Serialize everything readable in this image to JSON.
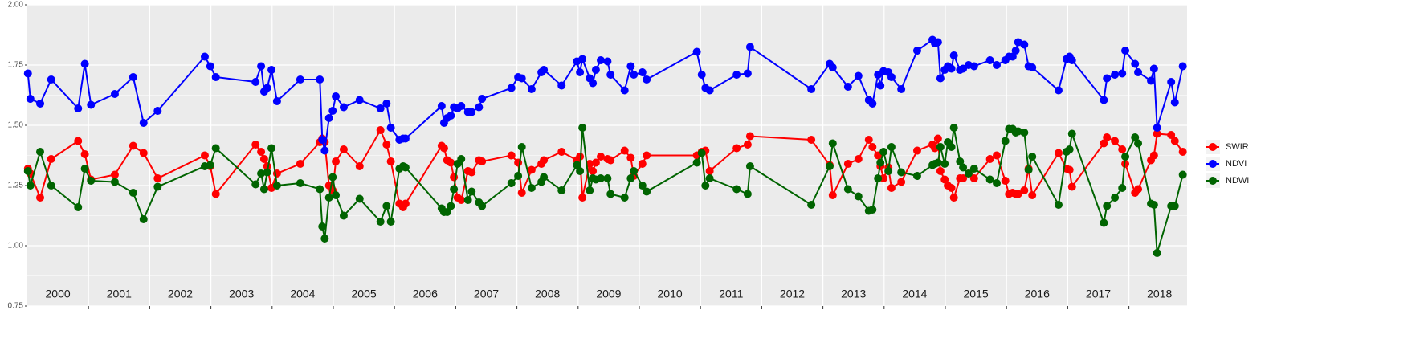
{
  "chart_data": {
    "type": "line",
    "x": [
      2000.01,
      2000.05,
      2000.21,
      2000.39,
      2000.83,
      2000.94,
      2001.04,
      2001.43,
      2001.73,
      2001.9,
      2002.13,
      2002.9,
      2002.99,
      2003.08,
      2003.73,
      2003.82,
      2003.87,
      2003.92,
      2003.99,
      2004.08,
      2004.46,
      2004.78,
      2004.82,
      2004.86,
      2004.93,
      2004.99,
      2005.04,
      2005.17,
      2005.43,
      2005.77,
      2005.87,
      2005.94,
      2006.08,
      2006.14,
      2006.18,
      2006.77,
      2006.81,
      2006.86,
      2006.92,
      2006.97,
      2007.03,
      2007.09,
      2007.2,
      2007.26,
      2007.38,
      2007.43,
      2007.91,
      2008.02,
      2008.08,
      2008.24,
      2008.4,
      2008.44,
      2008.73,
      2008.98,
      2009.03,
      2009.07,
      2009.19,
      2009.24,
      2009.29,
      2009.37,
      2009.48,
      2009.53,
      2009.76,
      2009.86,
      2009.91,
      2010.05,
      2010.12,
      2010.94,
      2011.02,
      2011.08,
      2011.15,
      2011.59,
      2011.77,
      2011.81,
      2012.81,
      2013.11,
      2013.16,
      2013.41,
      2013.58,
      2013.75,
      2013.81,
      2013.9,
      2013.94,
      2013.99,
      2014.07,
      2014.12,
      2014.28,
      2014.54,
      2014.79,
      2014.83,
      2014.88,
      2014.92,
      2014.99,
      2015.04,
      2015.1,
      2015.14,
      2015.24,
      2015.29,
      2015.38,
      2015.47,
      2015.73,
      2015.84,
      2015.98,
      2016.04,
      2016.1,
      2016.15,
      2016.19,
      2016.29,
      2016.36,
      2016.42,
      2016.85,
      2016.98,
      2017.03,
      2017.07,
      2017.59,
      2017.64,
      2017.77,
      2017.89,
      2017.94,
      2018.1,
      2018.15,
      2018.36,
      2018.41,
      2018.46,
      2018.69,
      2018.75,
      2018.88
    ],
    "series": [
      {
        "name": "SWIR",
        "color": "#ff0000",
        "values": [
          1.32,
          1.3,
          1.2,
          1.36,
          1.435,
          1.38,
          1.275,
          1.295,
          1.415,
          1.385,
          1.28,
          1.375,
          1.33,
          1.215,
          1.42,
          1.39,
          1.36,
          1.33,
          1.24,
          1.3,
          1.34,
          1.43,
          1.445,
          1.43,
          1.25,
          1.23,
          1.35,
          1.4,
          1.33,
          1.48,
          1.42,
          1.35,
          1.175,
          1.16,
          1.175,
          1.415,
          1.405,
          1.355,
          1.345,
          1.285,
          1.2,
          1.19,
          1.31,
          1.305,
          1.355,
          1.35,
          1.375,
          1.345,
          1.22,
          1.315,
          1.34,
          1.355,
          1.39,
          1.355,
          1.37,
          1.2,
          1.34,
          1.31,
          1.345,
          1.37,
          1.36,
          1.355,
          1.395,
          1.365,
          1.29,
          1.34,
          1.375,
          1.375,
          1.39,
          1.395,
          1.31,
          1.405,
          1.42,
          1.455,
          1.44,
          1.335,
          1.21,
          1.34,
          1.36,
          1.44,
          1.41,
          1.375,
          1.33,
          1.28,
          1.325,
          1.24,
          1.265,
          1.395,
          1.42,
          1.405,
          1.445,
          1.31,
          1.275,
          1.25,
          1.24,
          1.2,
          1.28,
          1.28,
          1.3,
          1.28,
          1.36,
          1.375,
          1.27,
          1.215,
          1.22,
          1.215,
          1.215,
          1.23,
          1.32,
          1.21,
          1.385,
          1.32,
          1.315,
          1.245,
          1.425,
          1.45,
          1.435,
          1.4,
          1.34,
          1.22,
          1.235,
          1.355,
          1.375,
          1.465,
          1.46,
          1.435,
          1.39
        ]
      },
      {
        "name": "NDVI",
        "color": "#0000ff",
        "values": [
          1.715,
          1.61,
          1.59,
          1.69,
          1.57,
          1.755,
          1.585,
          1.63,
          1.7,
          1.51,
          1.56,
          1.785,
          1.745,
          1.7,
          1.68,
          1.745,
          1.64,
          1.655,
          1.73,
          1.6,
          1.69,
          1.69,
          1.44,
          1.395,
          1.53,
          1.56,
          1.62,
          1.575,
          1.605,
          1.57,
          1.59,
          1.49,
          1.44,
          1.445,
          1.445,
          1.58,
          1.51,
          1.53,
          1.54,
          1.575,
          1.57,
          1.58,
          1.555,
          1.555,
          1.575,
          1.61,
          1.655,
          1.7,
          1.695,
          1.65,
          1.72,
          1.73,
          1.665,
          1.765,
          1.72,
          1.775,
          1.695,
          1.675,
          1.73,
          1.77,
          1.765,
          1.71,
          1.645,
          1.745,
          1.71,
          1.72,
          1.69,
          1.805,
          1.71,
          1.655,
          1.645,
          1.71,
          1.715,
          1.825,
          1.65,
          1.755,
          1.74,
          1.66,
          1.705,
          1.605,
          1.59,
          1.71,
          1.665,
          1.725,
          1.72,
          1.7,
          1.65,
          1.81,
          1.855,
          1.84,
          1.845,
          1.695,
          1.73,
          1.745,
          1.735,
          1.79,
          1.73,
          1.735,
          1.75,
          1.745,
          1.77,
          1.75,
          1.77,
          1.785,
          1.785,
          1.81,
          1.845,
          1.835,
          1.745,
          1.74,
          1.645,
          1.775,
          1.785,
          1.77,
          1.605,
          1.695,
          1.71,
          1.715,
          1.81,
          1.755,
          1.72,
          1.685,
          1.735,
          1.49,
          1.68,
          1.595,
          1.745
        ]
      },
      {
        "name": "NDWI",
        "color": "#006400",
        "values": [
          1.31,
          1.25,
          1.39,
          1.25,
          1.16,
          1.32,
          1.27,
          1.265,
          1.22,
          1.11,
          1.245,
          1.33,
          1.335,
          1.405,
          1.255,
          1.3,
          1.235,
          1.305,
          1.405,
          1.25,
          1.26,
          1.235,
          1.08,
          1.03,
          1.2,
          1.285,
          1.21,
          1.125,
          1.195,
          1.1,
          1.165,
          1.1,
          1.32,
          1.33,
          1.325,
          1.155,
          1.14,
          1.14,
          1.165,
          1.235,
          1.34,
          1.36,
          1.19,
          1.225,
          1.18,
          1.165,
          1.26,
          1.29,
          1.41,
          1.24,
          1.265,
          1.285,
          1.23,
          1.335,
          1.31,
          1.49,
          1.23,
          1.28,
          1.275,
          1.28,
          1.28,
          1.215,
          1.2,
          1.28,
          1.31,
          1.25,
          1.225,
          1.345,
          1.385,
          1.25,
          1.28,
          1.235,
          1.215,
          1.33,
          1.17,
          1.33,
          1.425,
          1.235,
          1.205,
          1.145,
          1.15,
          1.28,
          1.345,
          1.39,
          1.31,
          1.41,
          1.305,
          1.29,
          1.335,
          1.34,
          1.345,
          1.41,
          1.34,
          1.43,
          1.41,
          1.49,
          1.35,
          1.325,
          1.3,
          1.32,
          1.275,
          1.26,
          1.435,
          1.485,
          1.485,
          1.47,
          1.475,
          1.47,
          1.315,
          1.37,
          1.17,
          1.39,
          1.4,
          1.465,
          1.095,
          1.165,
          1.2,
          1.24,
          1.37,
          1.45,
          1.425,
          1.175,
          1.17,
          0.97,
          1.165,
          1.165,
          1.295
        ]
      }
    ],
    "xlim": [
      2000,
      2018.95
    ],
    "xticks": [
      2001,
      2002,
      2003,
      2004,
      2005,
      2006,
      2007,
      2008,
      2009,
      2010,
      2011,
      2012,
      2013,
      2014,
      2015,
      2016,
      2017,
      2018
    ],
    "ylim": [
      0.75,
      2.0
    ],
    "yticks": [
      {
        "value": 0.75,
        "label": "0.75"
      },
      {
        "value": 1.0,
        "label": "1.00"
      },
      {
        "value": 1.25,
        "label": "1.25"
      },
      {
        "value": 1.5,
        "label": "1.50"
      },
      {
        "value": 1.75,
        "label": "1.75"
      },
      {
        "value": 2.0,
        "label": "2.00"
      }
    ],
    "minor_yticks": [
      0.875,
      1.125,
      1.375,
      1.625,
      1.875
    ],
    "grid": true,
    "legend": "right",
    "annotations": [
      {
        "text": "2000",
        "x": 2000.5
      },
      {
        "text": "2001",
        "x": 2001.5
      },
      {
        "text": "2002",
        "x": 2002.5
      },
      {
        "text": "2003",
        "x": 2003.5
      },
      {
        "text": "2004",
        "x": 2004.5
      },
      {
        "text": "2005",
        "x": 2005.5
      },
      {
        "text": "2006",
        "x": 2006.5
      },
      {
        "text": "2007",
        "x": 2007.5
      },
      {
        "text": "2008",
        "x": 2008.5
      },
      {
        "text": "2009",
        "x": 2009.5
      },
      {
        "text": "2010",
        "x": 2010.5
      },
      {
        "text": "2011",
        "x": 2011.5
      },
      {
        "text": "2012",
        "x": 2012.5
      },
      {
        "text": "2013",
        "x": 2013.5
      },
      {
        "text": "2014",
        "x": 2014.5
      },
      {
        "text": "2015",
        "x": 2015.5
      },
      {
        "text": "2016",
        "x": 2016.5
      },
      {
        "text": "2017",
        "x": 2017.5
      },
      {
        "text": "2018",
        "x": 2018.5
      }
    ]
  }
}
